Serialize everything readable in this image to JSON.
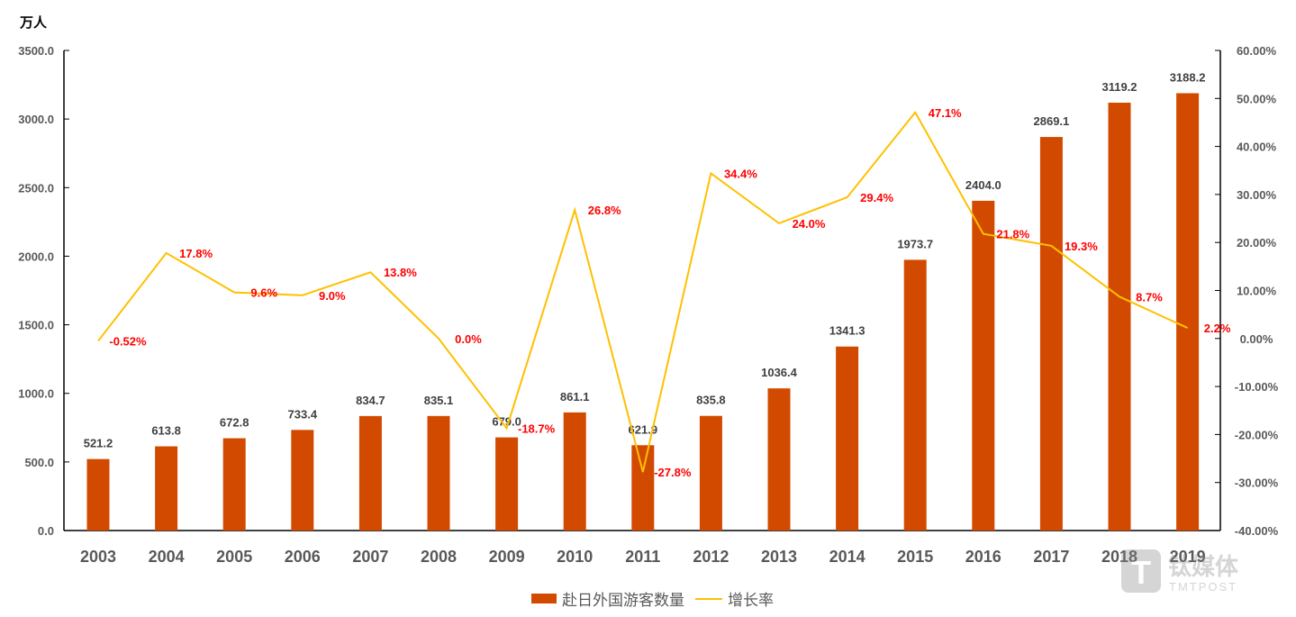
{
  "chart_data": {
    "type": "bar+line",
    "unit_label": "万人",
    "categories": [
      "2003",
      "2004",
      "2005",
      "2006",
      "2007",
      "2008",
      "2009",
      "2010",
      "2011",
      "2012",
      "2013",
      "2014",
      "2015",
      "2016",
      "2017",
      "2018",
      "2019"
    ],
    "series": [
      {
        "name": "赴日外国游客数量",
        "type": "bar",
        "axis": "left",
        "color": "#D24A00",
        "values": [
          521.2,
          613.8,
          672.8,
          733.4,
          834.7,
          835.1,
          679.0,
          861.1,
          621.9,
          835.8,
          1036.4,
          1341.3,
          1973.7,
          2404.0,
          2869.1,
          3119.2,
          3188.2
        ],
        "labels": [
          "521.2",
          "613.8",
          "672.8",
          "733.4",
          "834.7",
          "835.1",
          "679.0",
          "861.1",
          "621.9",
          "835.8",
          "1036.4",
          "1341.3",
          "1973.7",
          "2404.0",
          "2869.1",
          "3119.2",
          "3188.2"
        ]
      },
      {
        "name": "增长率",
        "type": "line",
        "axis": "right",
        "color": "#FFC000",
        "label_color": "#FF0000",
        "values": [
          -0.52,
          17.8,
          9.6,
          9.0,
          13.8,
          0.0,
          -18.7,
          26.8,
          -27.8,
          34.4,
          24.0,
          29.4,
          47.1,
          21.8,
          19.3,
          8.7,
          2.2
        ],
        "labels": [
          "-0.52%",
          "17.8%",
          "9.6%",
          "9.0%",
          "13.8%",
          "0.0%",
          "-18.7%",
          "26.8%",
          "-27.8%",
          "34.4%",
          "24.0%",
          "29.4%",
          "47.1%",
          "21.8%",
          "19.3%",
          "8.7%",
          "2.2%"
        ]
      }
    ],
    "left_axis": {
      "range": [
        0,
        3500
      ],
      "ticks": [
        "0.0",
        "500.0",
        "1000.0",
        "1500.0",
        "2000.0",
        "2500.0",
        "3000.0",
        "3500.0"
      ]
    },
    "right_axis": {
      "range": [
        -40,
        60
      ],
      "ticks": [
        "-40.00%",
        "-30.00%",
        "-20.00%",
        "-10.00%",
        "0.00%",
        "10.00%",
        "20.00%",
        "30.00%",
        "40.00%",
        "50.00%",
        "60.00%"
      ]
    },
    "grid": false,
    "legend_position": "bottom"
  },
  "watermark": {
    "brand": "钛媒体",
    "sub": "TMTPOST"
  }
}
